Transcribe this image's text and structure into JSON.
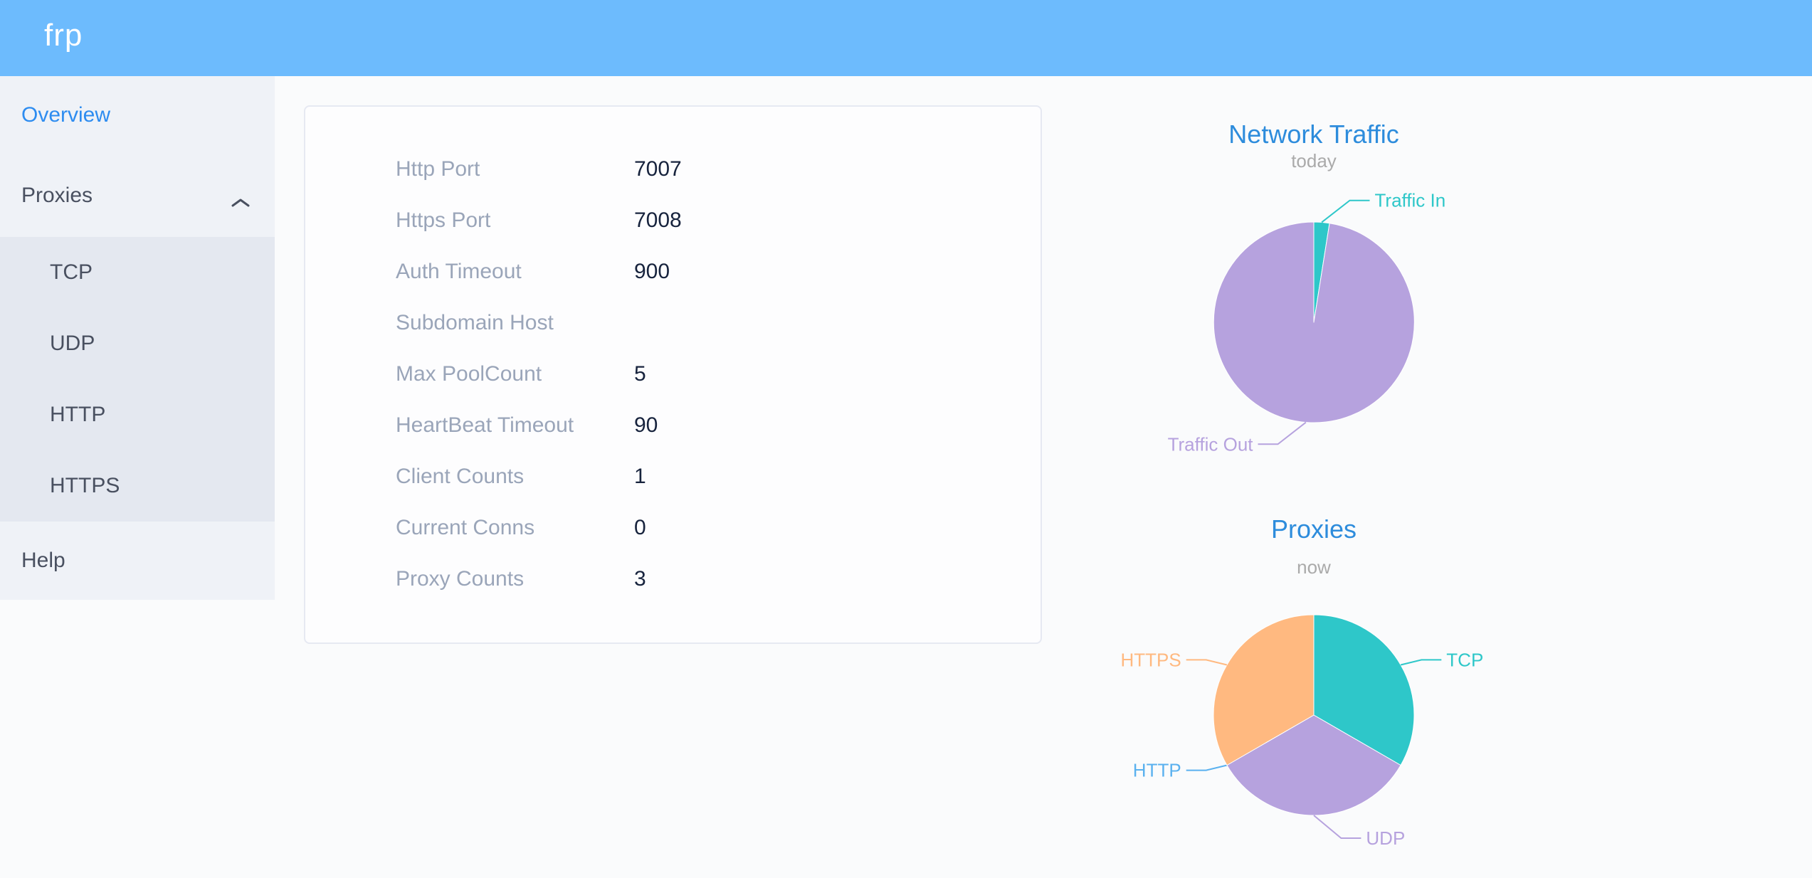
{
  "header": {
    "logo": "frp",
    "background_color": "#6dbbfd"
  },
  "sidebar": {
    "overview_label": "Overview",
    "proxies_label": "Proxies",
    "proxies_expanded": true,
    "submenu": [
      "TCP",
      "UDP",
      "HTTP",
      "HTTPS"
    ],
    "help_label": "Help",
    "active_item": "Overview",
    "active_color": "#2d8cf0",
    "text_color": "#495060"
  },
  "server_info": {
    "rows": [
      {
        "label": "Http Port",
        "value": "7007"
      },
      {
        "label": "Https Port",
        "value": "7008"
      },
      {
        "label": "Auth Timeout",
        "value": "900"
      },
      {
        "label": "Subdomain Host",
        "value": ""
      },
      {
        "label": "Max PoolCount",
        "value": "5"
      },
      {
        "label": "HeartBeat Timeout",
        "value": "90"
      },
      {
        "label": "Client Counts",
        "value": "1"
      },
      {
        "label": "Current Conns",
        "value": "0"
      },
      {
        "label": "Proxy Counts",
        "value": "3"
      }
    ]
  },
  "chart_data": [
    {
      "type": "pie",
      "title": "Network Traffic",
      "subtitle": "today",
      "label_position": "outside",
      "legend_position": "none",
      "title_color": "#2d8cdc",
      "slices": [
        {
          "label": "Traffic In",
          "value": 2.5,
          "color": "#2ec7c9"
        },
        {
          "label": "Traffic Out",
          "value": 97.5,
          "color": "#b6a2de"
        }
      ]
    },
    {
      "type": "pie",
      "title": "Proxies",
      "subtitle": "now",
      "label_position": "outside",
      "legend_position": "none",
      "title_color": "#2d8cdc",
      "slices": [
        {
          "label": "TCP",
          "value": 1,
          "color": "#2ec7c9"
        },
        {
          "label": "UDP",
          "value": 1,
          "color": "#b6a2de"
        },
        {
          "label": "HTTP",
          "value": 0,
          "color": "#5ab1ef"
        },
        {
          "label": "HTTPS",
          "value": 1,
          "color": "#ffb980"
        }
      ]
    }
  ]
}
